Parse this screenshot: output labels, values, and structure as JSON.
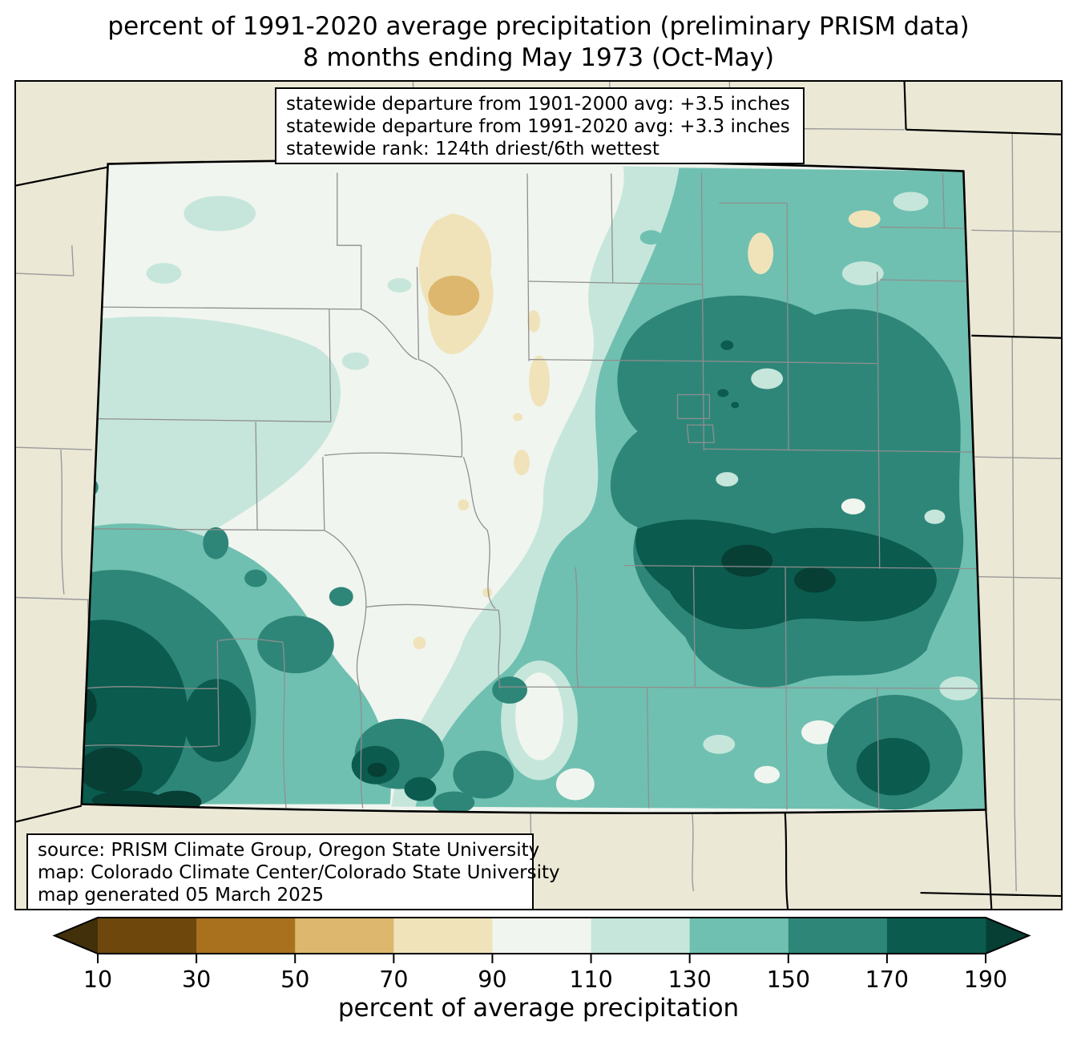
{
  "title": {
    "line1": "percent of 1991-2020 average precipitation (preliminary PRISM data)",
    "line2": "8 months ending May 1973 (Oct-May)"
  },
  "stats_box": {
    "lines": [
      "statewide departure from 1901-2000 avg: +3.5 inches",
      "statewide departure from 1991-2020 avg: +3.3 inches",
      "statewide rank: 124th driest/6th wettest"
    ]
  },
  "credits_box": {
    "lines": [
      "source: PRISM Climate Group, Oregon State University",
      "map: Colorado Climate Center/Colorado State University",
      "map generated 05 March 2025"
    ]
  },
  "colorbar": {
    "label": "percent of average precipitation",
    "ticks": [
      "10",
      "30",
      "50",
      "70",
      "90",
      "110",
      "130",
      "150",
      "170",
      "190"
    ],
    "segment_colors": [
      "#6e470c",
      "#a9711e",
      "#dcb76d",
      "#f0e3ba",
      "#f1f5ef",
      "#c6e6db",
      "#6fc0b0",
      "#2e8679",
      "#0b5b4f"
    ],
    "under_arrow_color": "#42300b",
    "over_arrow_color": "#073f35"
  },
  "palette": {
    "b50_70": "#dcb76d",
    "b70_90": "#f0e3ba",
    "b90_110": "#f1f5ef",
    "b110_130": "#c6e6db",
    "b130_150": "#6fc0b0",
    "b150_170": "#2e8679",
    "b170_190": "#0b5b4f",
    "over": "#073f35",
    "background_outside_state": "#ebe8d6"
  }
}
